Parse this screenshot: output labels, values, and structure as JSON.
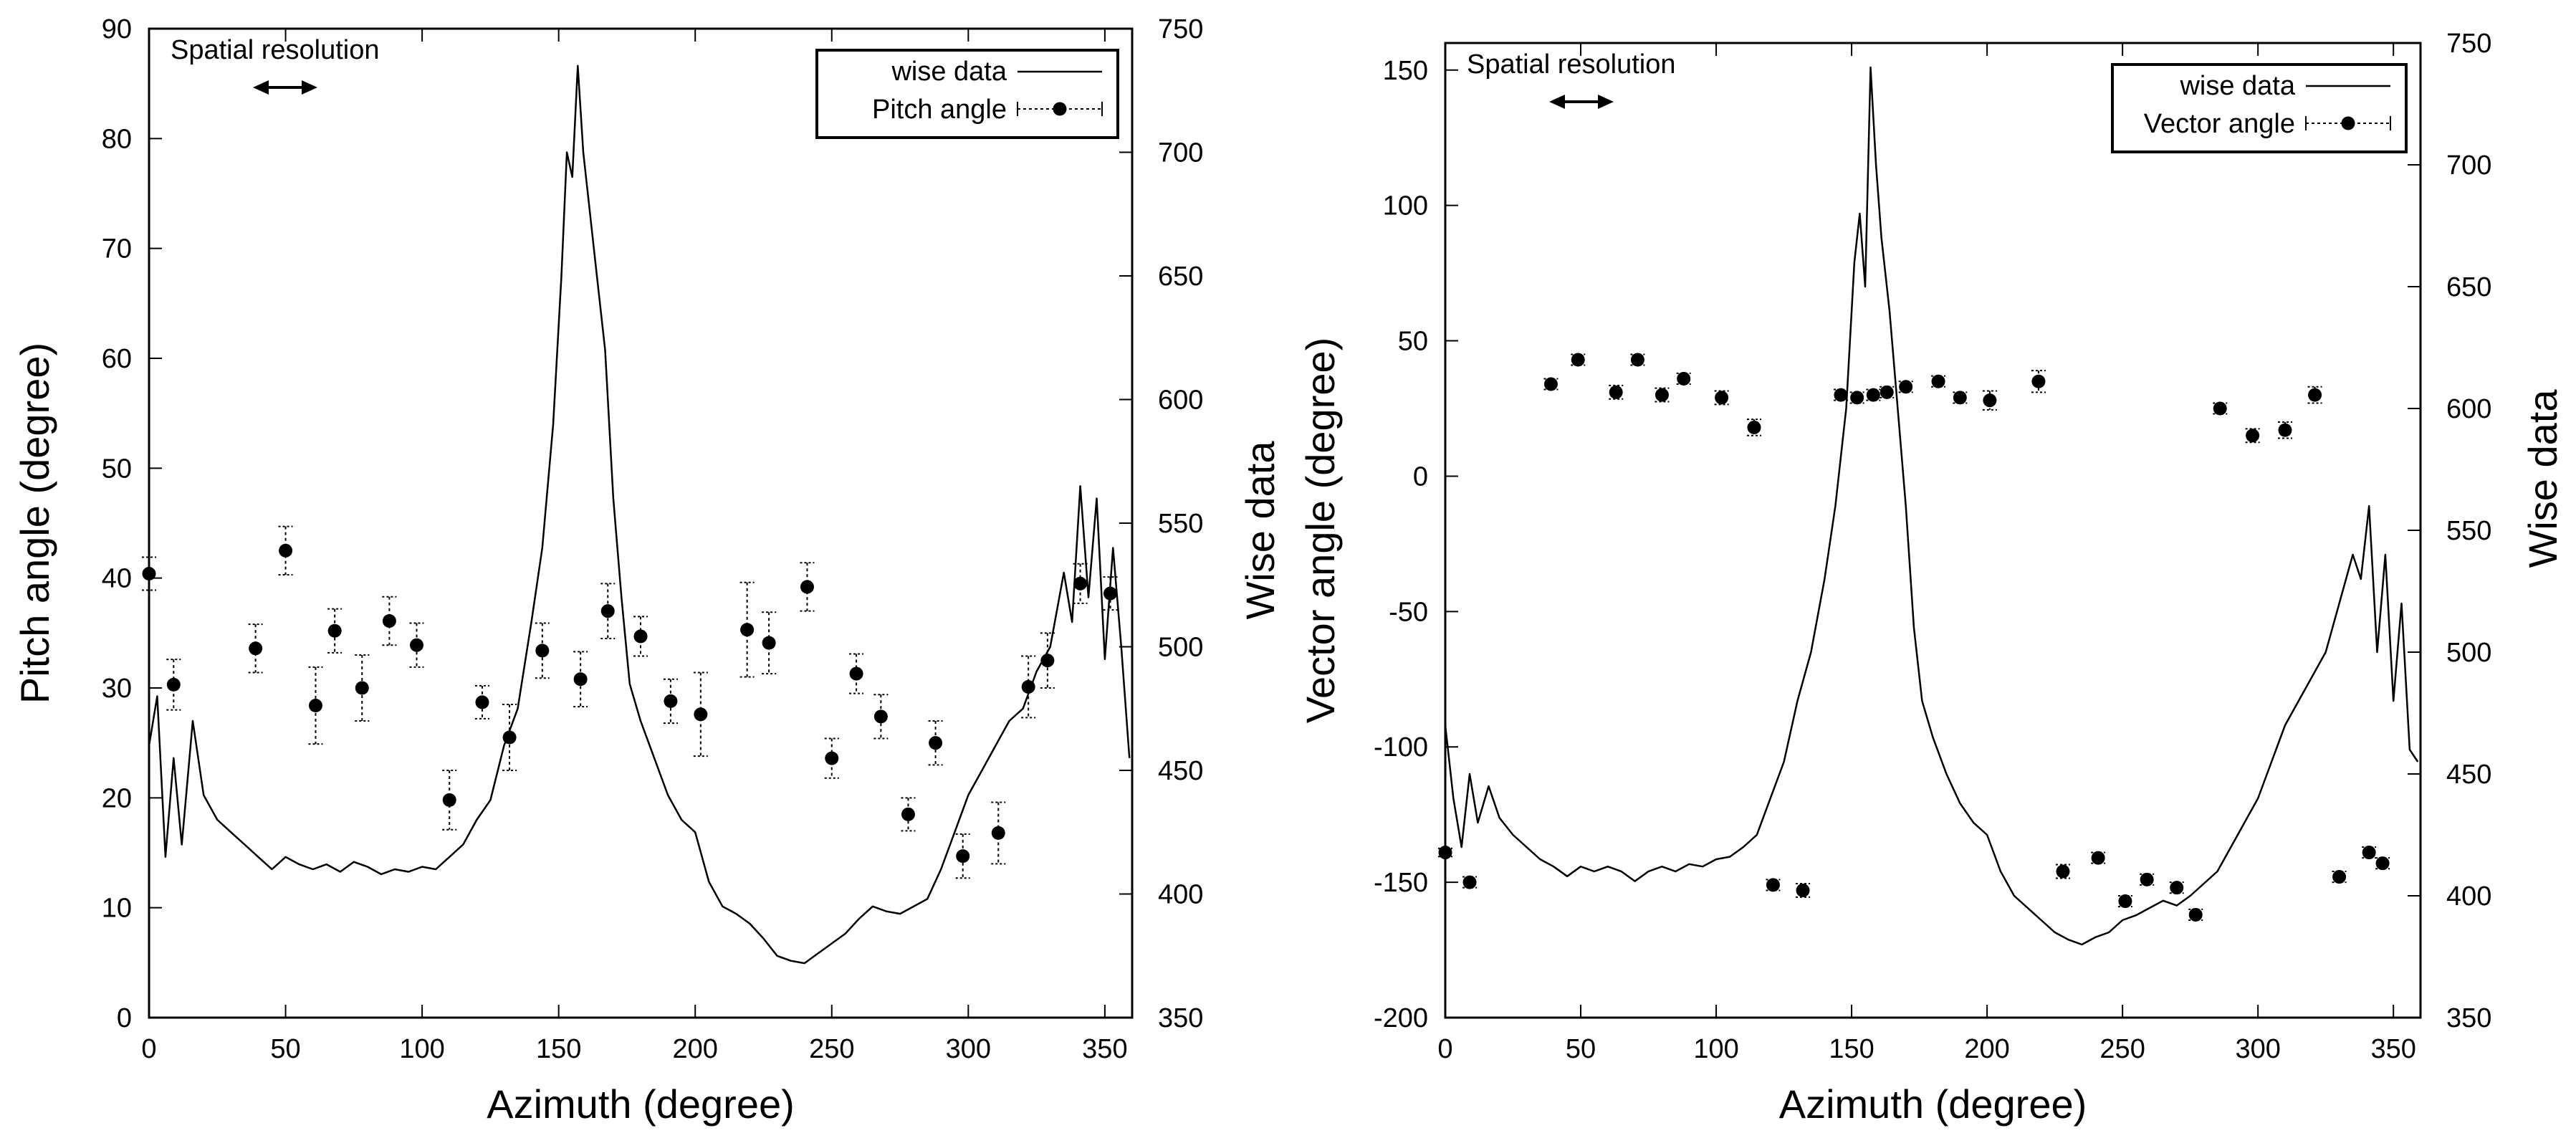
{
  "colors": {
    "line": "#000000",
    "background": "#ffffff"
  },
  "chart_data": [
    {
      "type": "scatter",
      "title": "",
      "xlabel": "Azimuth (degree)",
      "ylabel": "Pitch angle (degree)",
      "y2label": "Wise data",
      "xlim": [
        0,
        360
      ],
      "ylim": [
        0,
        90
      ],
      "y2lim": [
        350,
        750
      ],
      "xticks": [
        "0",
        "50",
        "100",
        "150",
        "200",
        "250",
        "300",
        "350"
      ],
      "yticks": [
        "0",
        "10",
        "20",
        "30",
        "40",
        "50",
        "60",
        "70",
        "80",
        "90"
      ],
      "y2ticks": [
        "350",
        "400",
        "450",
        "500",
        "550",
        "600",
        "650",
        "700",
        "750"
      ],
      "annotation": "Spatial resolution",
      "legend": {
        "placement": "top-right",
        "entries": [
          "wise data",
          "Pitch angle"
        ]
      },
      "grid": false,
      "series": [
        {
          "name": "Pitch angle",
          "kind": "points-with-errorbars",
          "x": [
            0,
            9,
            39,
            50,
            61,
            68,
            78,
            88,
            98,
            110,
            122,
            132,
            144,
            158,
            168,
            180,
            191,
            202,
            219,
            227,
            241,
            250,
            259,
            268,
            278,
            288,
            298,
            311,
            322,
            329,
            341,
            352
          ],
          "y": [
            40.4,
            30.3,
            33.6,
            42.5,
            28.4,
            35.2,
            30.0,
            36.1,
            33.9,
            19.8,
            28.7,
            25.5,
            33.4,
            30.8,
            37.0,
            34.7,
            28.8,
            27.6,
            35.3,
            34.1,
            39.2,
            23.6,
            31.3,
            27.4,
            18.5,
            25.0,
            14.7,
            16.8,
            30.1,
            32.5,
            39.5,
            38.6
          ],
          "err": [
            1.5,
            2.3,
            2.2,
            2.2,
            3.5,
            2.0,
            3.0,
            2.2,
            2.0,
            2.7,
            1.5,
            3.0,
            2.5,
            2.5,
            2.5,
            1.8,
            2.0,
            3.8,
            4.3,
            2.8,
            2.2,
            1.8,
            1.8,
            2.0,
            1.5,
            2.0,
            2.0,
            2.8,
            2.8,
            2.5,
            1.8,
            1.5
          ]
        },
        {
          "name": "wise data",
          "kind": "line",
          "axis": "y2",
          "x": [
            0,
            3,
            6,
            9,
            12,
            16,
            20,
            25,
            30,
            35,
            40,
            45,
            50,
            55,
            60,
            65,
            70,
            75,
            80,
            85,
            90,
            95,
            100,
            105,
            110,
            115,
            120,
            125,
            130,
            135,
            140,
            144,
            148,
            151,
            153,
            155,
            157,
            159,
            161,
            164,
            167,
            170,
            173,
            176,
            180,
            185,
            190,
            195,
            200,
            205,
            210,
            215,
            220,
            225,
            230,
            235,
            240,
            245,
            250,
            255,
            260,
            265,
            270,
            275,
            280,
            285,
            290,
            295,
            300,
            305,
            310,
            315,
            320,
            325,
            330,
            335,
            338,
            341,
            344,
            347,
            350,
            353,
            356,
            359
          ],
          "y": [
            460,
            480,
            415,
            455,
            420,
            470,
            440,
            430,
            425,
            420,
            415,
            410,
            415,
            412,
            410,
            412,
            409,
            413,
            411,
            408,
            410,
            409,
            411,
            410,
            415,
            420,
            430,
            438,
            460,
            475,
            510,
            540,
            590,
            650,
            700,
            690,
            735,
            700,
            680,
            650,
            620,
            560,
            520,
            485,
            470,
            455,
            440,
            430,
            425,
            405,
            395,
            392,
            388,
            382,
            375,
            373,
            372,
            376,
            380,
            384,
            390,
            395,
            393,
            392,
            395,
            398,
            410,
            425,
            440,
            450,
            460,
            470,
            475,
            490,
            500,
            530,
            510,
            565,
            520,
            560,
            495,
            540,
            500,
            455
          ]
        }
      ]
    },
    {
      "type": "scatter",
      "title": "",
      "xlabel": "Azimuth (degree)",
      "ylabel": "Vector angle (degree)",
      "y2label": "Wise data",
      "xlim": [
        0,
        360
      ],
      "ylim": [
        -200,
        160
      ],
      "y2lim": [
        350,
        750
      ],
      "xticks": [
        "0",
        "50",
        "100",
        "150",
        "200",
        "250",
        "300",
        "350"
      ],
      "yticks": [
        "-200",
        "-150",
        "-100",
        "-50",
        "0",
        "50",
        "100",
        "150"
      ],
      "y2ticks": [
        "350",
        "400",
        "450",
        "500",
        "550",
        "600",
        "650",
        "700",
        "750"
      ],
      "annotation": "Spatial resolution",
      "legend": {
        "placement": "top-right",
        "entries": [
          "wise data",
          "Vector angle"
        ]
      },
      "grid": false,
      "series": [
        {
          "name": "Vector angle",
          "kind": "points-with-errorbars",
          "x": [
            0,
            9,
            39,
            49,
            63,
            71,
            80,
            88,
            102,
            114,
            121,
            132,
            146,
            152,
            158,
            163,
            170,
            182,
            190,
            201,
            219,
            228,
            241,
            251,
            259,
            270,
            277,
            286,
            298,
            310,
            321,
            330,
            341,
            346
          ],
          "y": [
            -139,
            -150,
            34,
            43,
            31,
            43,
            30,
            36,
            29,
            18,
            -151,
            -153,
            30,
            29,
            30,
            31,
            33,
            35,
            29,
            28,
            35,
            -146,
            -141,
            -157,
            -149,
            -152,
            -162,
            25,
            15,
            17,
            30,
            -148,
            -139,
            -143
          ],
          "err": [
            1.5,
            2.0,
            2.0,
            2.0,
            2.5,
            2.0,
            2.5,
            2.0,
            2.5,
            3.0,
            2.0,
            2.5,
            2.0,
            2.0,
            2.0,
            2.0,
            2.0,
            2.0,
            2.0,
            3.5,
            4.0,
            2.5,
            2.0,
            2.0,
            2.0,
            2.0,
            2.0,
            2.0,
            2.5,
            3.0,
            3.0,
            2.0,
            2.0,
            2.0
          ]
        },
        {
          "name": "wise data",
          "kind": "line",
          "axis": "y2",
          "x": [
            0,
            3,
            6,
            9,
            12,
            16,
            20,
            25,
            30,
            35,
            40,
            45,
            50,
            55,
            60,
            65,
            70,
            75,
            80,
            85,
            90,
            95,
            100,
            105,
            110,
            115,
            120,
            125,
            130,
            135,
            140,
            144,
            148,
            151,
            153,
            155,
            157,
            159,
            161,
            164,
            167,
            170,
            173,
            176,
            180,
            185,
            190,
            195,
            200,
            205,
            210,
            215,
            220,
            225,
            230,
            235,
            240,
            245,
            250,
            255,
            260,
            265,
            270,
            275,
            280,
            285,
            290,
            295,
            300,
            305,
            310,
            315,
            320,
            325,
            330,
            335,
            338,
            341,
            344,
            347,
            350,
            353,
            356,
            359
          ],
          "y": [
            470,
            440,
            420,
            450,
            430,
            445,
            432,
            425,
            420,
            415,
            412,
            408,
            412,
            410,
            412,
            410,
            406,
            410,
            412,
            410,
            413,
            412,
            415,
            416,
            420,
            425,
            440,
            455,
            480,
            500,
            530,
            560,
            600,
            660,
            680,
            650,
            740,
            700,
            670,
            640,
            600,
            560,
            510,
            480,
            465,
            450,
            438,
            430,
            425,
            410,
            400,
            395,
            390,
            385,
            382,
            380,
            383,
            385,
            390,
            392,
            395,
            398,
            396,
            400,
            405,
            410,
            420,
            430,
            440,
            455,
            470,
            480,
            490,
            500,
            520,
            540,
            530,
            560,
            500,
            540,
            480,
            520,
            460,
            455
          ]
        }
      ]
    }
  ]
}
